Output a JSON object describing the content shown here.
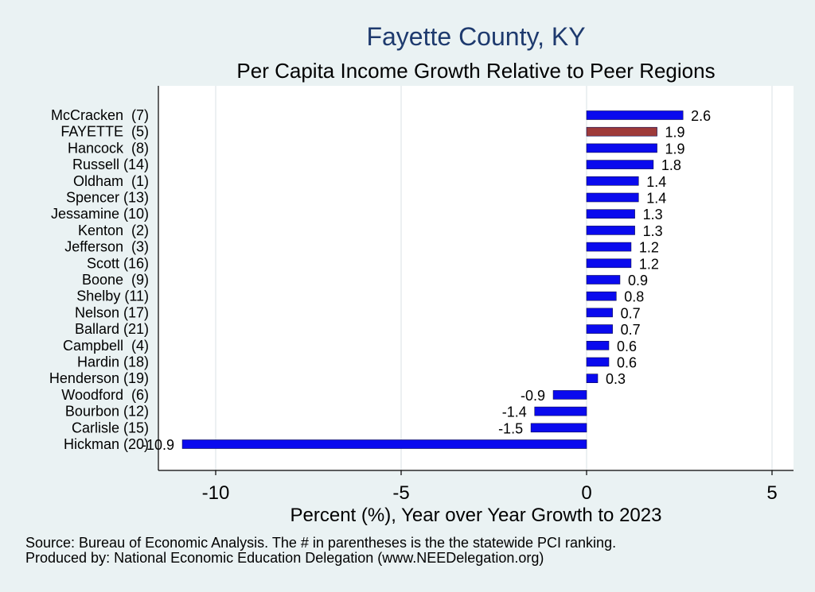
{
  "chart_data": {
    "type": "bar",
    "orientation": "horizontal",
    "title": "Fayette County, KY",
    "subtitle": "Per Capita Income Growth Relative to Peer Regions",
    "xlabel": "Percent (%), Year over Year Growth to 2023",
    "ylabel": "",
    "xlim": [
      -11.3,
      5.5
    ],
    "xticks": [
      -10,
      -5,
      0,
      5
    ],
    "xtick_labels": [
      "-10",
      "-5",
      "0",
      "5"
    ],
    "grid": true,
    "categories": [
      "McCracken  (7)",
      "FAYETTE  (5)",
      "Hancock  (8)",
      "Russell (14)",
      "Oldham  (1)",
      "Spencer (13)",
      "Jessamine (10)",
      "Kenton  (2)",
      "Jefferson  (3)",
      "Scott (16)",
      "Boone  (9)",
      "Shelby (11)",
      "Nelson (17)",
      "Ballard (21)",
      "Campbell  (4)",
      "Hardin (18)",
      "Henderson (19)",
      "Woodford  (6)",
      "Bourbon (12)",
      "Carlisle (15)",
      "Hickman (20)"
    ],
    "values": [
      2.6,
      1.9,
      1.9,
      1.8,
      1.4,
      1.4,
      1.3,
      1.3,
      1.2,
      1.2,
      0.9,
      0.8,
      0.7,
      0.7,
      0.6,
      0.6,
      0.3,
      -0.9,
      -1.4,
      -1.5,
      -10.9
    ],
    "value_labels": [
      "2.6",
      "1.9",
      "1.9",
      "1.8",
      "1.4",
      "1.4",
      "1.3",
      "1.3",
      "1.2",
      "1.2",
      "0.9",
      "0.8",
      "0.7",
      "0.7",
      "0.6",
      "0.6",
      "0.3",
      "-0.9",
      "-1.4",
      "-1.5",
      "-10.9"
    ],
    "highlight": "FAYETTE  (5)",
    "colors": {
      "bar": "#0a0aee",
      "highlight": "#9e3a3a",
      "plot_bg": "#ffffff",
      "page_bg": "#eaf2f3",
      "grid": "#e6ecee"
    }
  },
  "footer": {
    "source": "Source: Bureau of Economic Analysis. The # in parentheses is the the statewide PCI ranking.",
    "produced": "Produced by: National Economic Education Delegation (www.NEEDelegation.org)"
  }
}
